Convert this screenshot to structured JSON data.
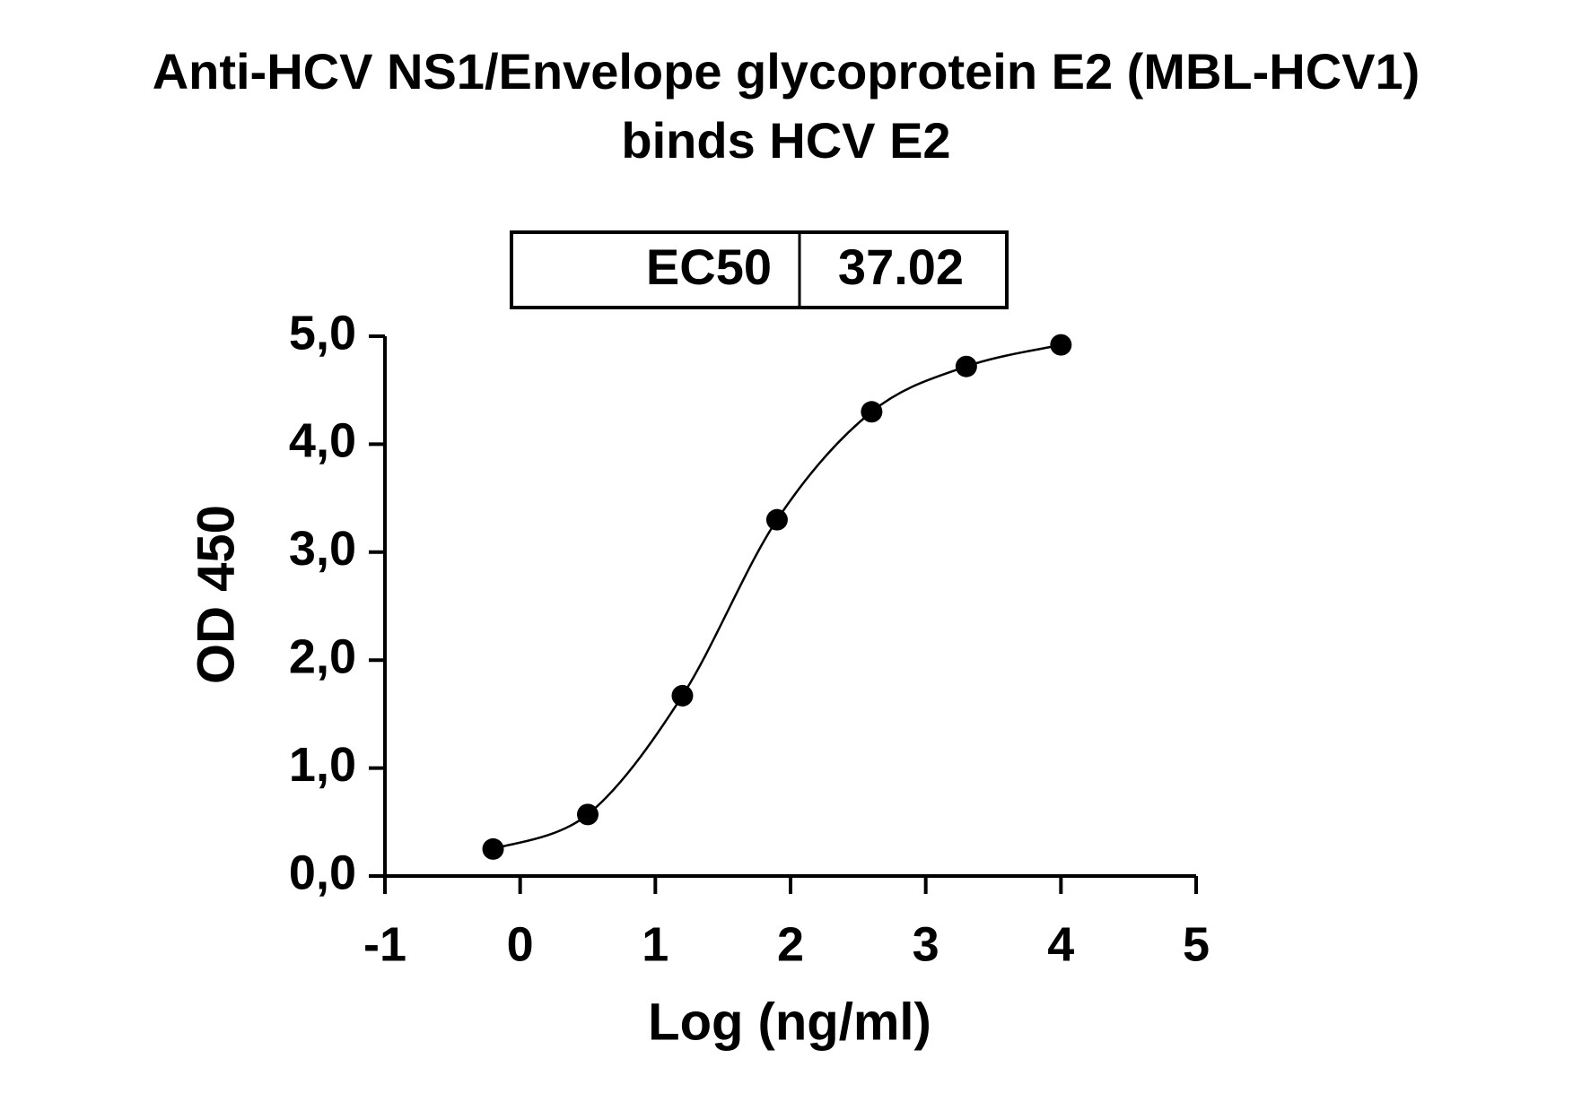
{
  "chart_data": {
    "type": "scatter",
    "title": [
      "Anti-HCV NS1/Envelope glycoprotein E2 (MBL-HCV1)",
      "binds HCV E2"
    ],
    "annotation": {
      "label": "EC50",
      "value": 37.02
    },
    "x_label": "Log (ng/ml)",
    "y_label": "OD 450",
    "series": [
      {
        "name": "MBL-HCV1",
        "color": "#000000",
        "x": [
          -0.2,
          0.5,
          1.2,
          1.9,
          2.6,
          3.3,
          4.0
        ],
        "values": [
          0.25,
          0.57,
          1.67,
          3.3,
          4.3,
          4.72,
          4.92
        ]
      }
    ],
    "xlim": [
      -1,
      5
    ],
    "xticks": [
      -1,
      0,
      1,
      2,
      3,
      4,
      5
    ],
    "ylim": [
      0,
      5
    ],
    "yticks": [
      {
        "value": 0,
        "label": "0,0"
      },
      {
        "value": 1,
        "label": "1,0"
      },
      {
        "value": 2,
        "label": "2,0"
      },
      {
        "value": 3,
        "label": "3,0"
      },
      {
        "value": 4,
        "label": "4,0"
      },
      {
        "value": 5,
        "label": "5,0"
      }
    ],
    "grid": false
  }
}
